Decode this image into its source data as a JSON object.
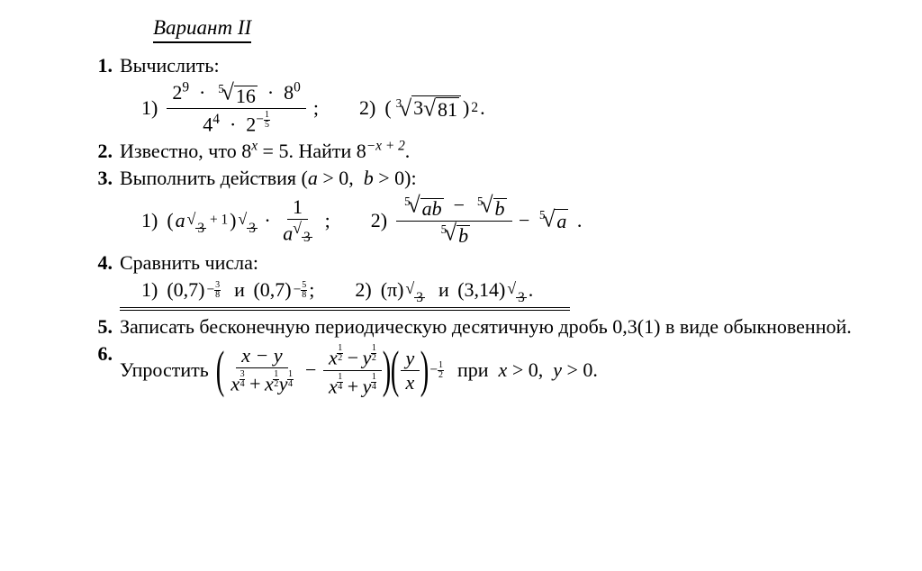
{
  "title": "Вариант II",
  "colors": {
    "text": "#000000",
    "background": "#ffffff",
    "rule": "#000000"
  },
  "fontsize_body_pt": 17,
  "fontsize_title_pt": 17,
  "problems": {
    "p1": {
      "num": "1.",
      "prompt": "Вычислить:",
      "s1_label": "1)",
      "s1_num_a": "2",
      "s1_num_a_exp": "9",
      "s1_root_idx": "5",
      "s1_root_arg": "16",
      "s1_num_c": "8",
      "s1_num_c_exp": "0",
      "s1_den_a": "4",
      "s1_den_a_exp": "4",
      "s1_den_b": "2",
      "s1_den_b_exp_neg": "−",
      "s1_den_b_exp_t": "1",
      "s1_den_b_exp_b": "5",
      "s1_end": ";",
      "s2_label": "2)",
      "s2_outer_root_idx": "3",
      "s2_inner_a": "3",
      "s2_inner_root_arg": "81",
      "s2_exp": "2",
      "s2_end": "."
    },
    "p2": {
      "num": "2.",
      "text_a": "Известно, что 8",
      "exp_a": "x",
      "text_b": " = 5. Найти 8",
      "exp_b": "−x + 2",
      "text_c": "."
    },
    "p3": {
      "num": "3.",
      "prompt": "Выполнить действия (a > 0,  b > 0):",
      "a_var": "a",
      "b_var": "b",
      "s1_label": "1)",
      "s1_base": "a",
      "s1_exp_inner_root": "3",
      "s1_exp_inner_plus": "+ 1",
      "s1_outer_exp_root": "3",
      "s1_frac_num": "1",
      "s1_frac_den_base": "a",
      "s1_frac_den_exp_root": "3",
      "s1_end": ";",
      "s2_label": "2)",
      "s2_root_idx": "5",
      "s2_num_l_arg": "ab",
      "s2_num_r_arg": "b",
      "s2_den_arg": "b",
      "s2_tail_arg": "a",
      "s2_end": "."
    },
    "p4": {
      "num": "4.",
      "prompt": "Сравнить числа:",
      "s1_label": "1)",
      "s1_a_base": "(0,7)",
      "s1_a_exp_sign": "−",
      "s1_a_exp_t": "3",
      "s1_a_exp_b": "8",
      "s1_and": "и",
      "s1_b_base": "(0,7)",
      "s1_b_exp_sign": "−",
      "s1_b_exp_t": "5",
      "s1_b_exp_b": "8",
      "s1_end": ";",
      "s2_label": "2)",
      "s2_a_base": "(π)",
      "s2_a_exp_root": "3",
      "s2_and": "и",
      "s2_b_base": "(3,14)",
      "s2_b_exp_root": "3",
      "s2_end": "."
    },
    "p5": {
      "num": "5.",
      "text": "Записать бесконечную периодическую десятичную дробь 0,3(1) в виде обыкновенной."
    },
    "p6": {
      "num": "6.",
      "lead": "Упростить",
      "t1_num": "x − y",
      "t1_den_a": "x",
      "t1_den_a_t": "3",
      "t1_den_a_b": "4",
      "t1_den_plus": " + ",
      "t1_den_b": "x",
      "t1_den_b_t": "1",
      "t1_den_b_b": "2",
      "t1_den_c": "y",
      "t1_den_c_t": "1",
      "t1_den_c_b": "4",
      "t2_num_a": "x",
      "t2_num_a_t": "1",
      "t2_num_a_b": "2",
      "t2_num_minus": " − ",
      "t2_num_b": "y",
      "t2_num_b_t": "1",
      "t2_num_b_b": "2",
      "t2_den_a": "x",
      "t2_den_a_t": "1",
      "t2_den_a_b": "4",
      "t2_den_plus": " + ",
      "t2_den_b": "y",
      "t2_den_b_t": "1",
      "t2_den_b_b": "4",
      "t3_num": "y",
      "t3_den": "x",
      "t3_exp_sign": "−",
      "t3_exp_t": "1",
      "t3_exp_b": "2",
      "cond": "при  x > 0,  y > 0."
    }
  }
}
